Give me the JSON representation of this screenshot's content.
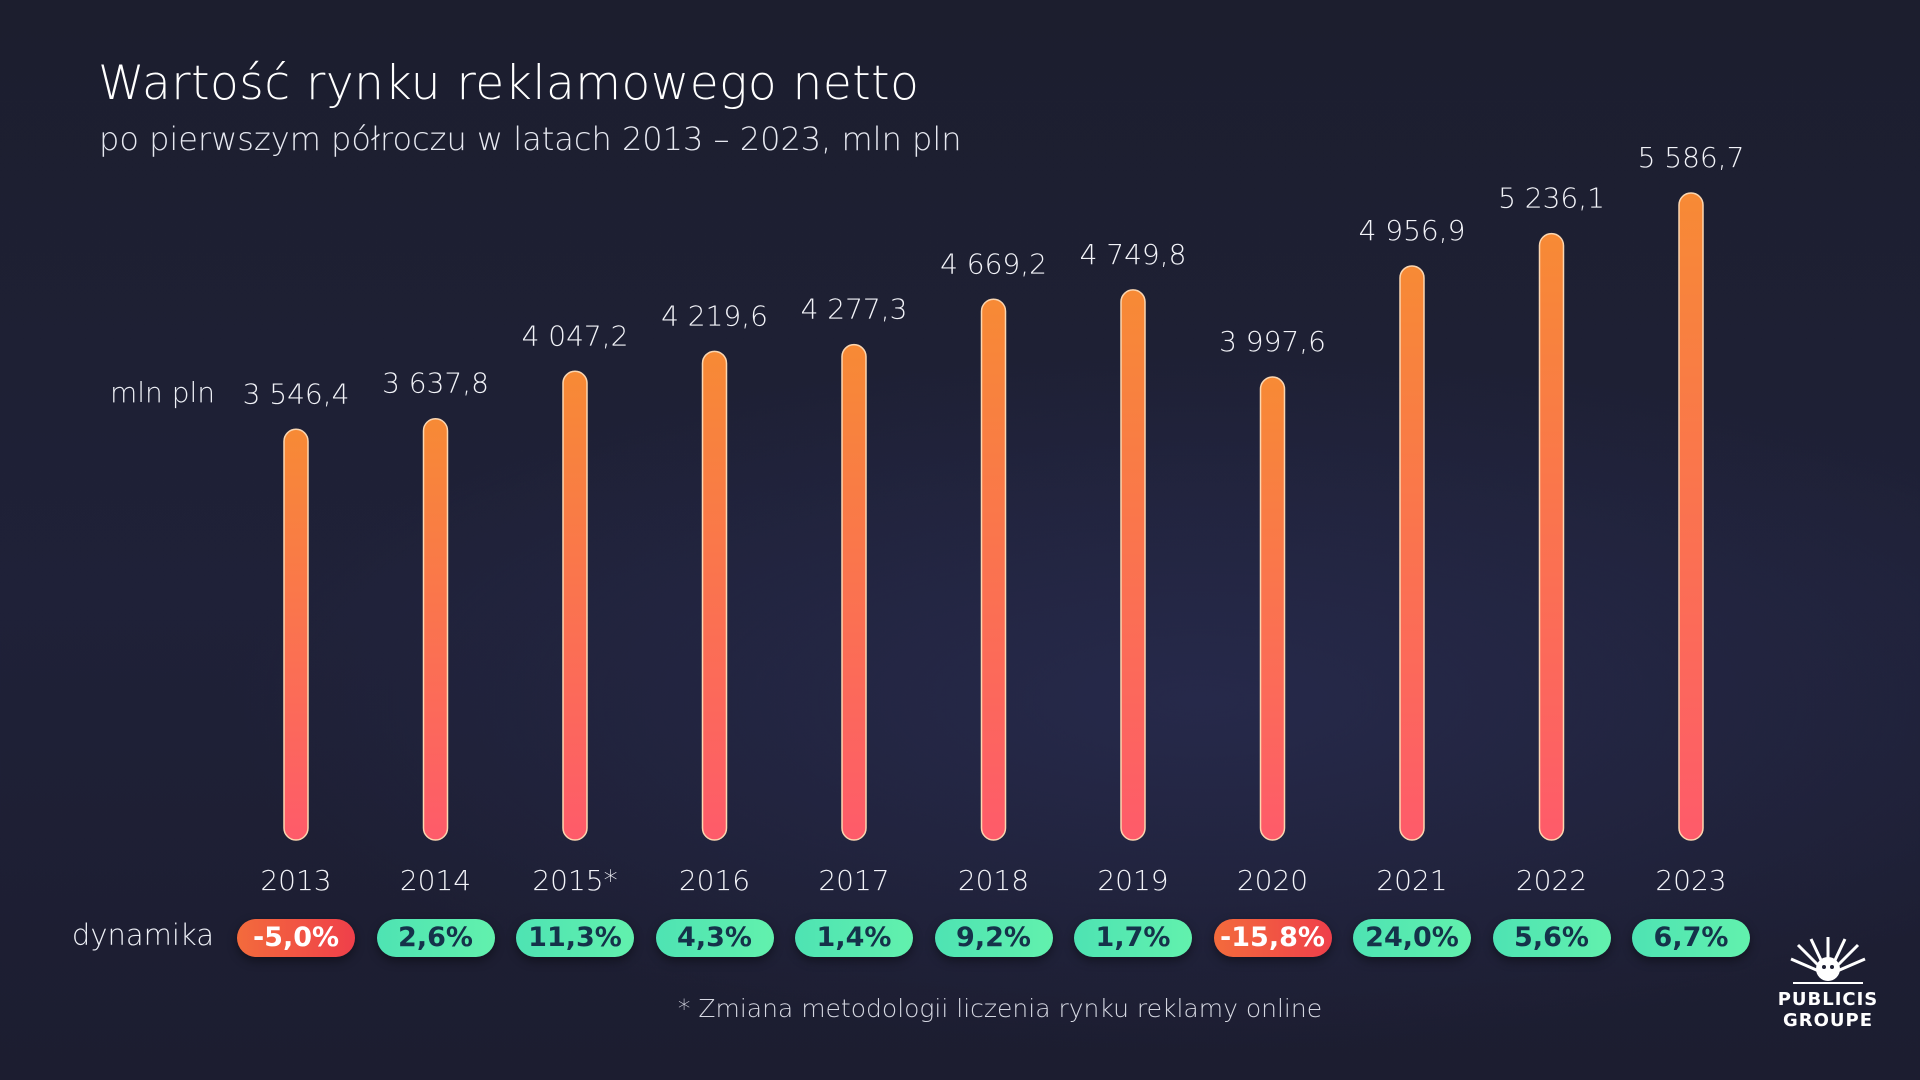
{
  "title": "Wartość rynku reklamowego netto",
  "subtitle": "po pierwszym półroczu w latach 2013 – 2023, mln pln",
  "unit_label": "mln pln",
  "dynamics_label": "dynamika",
  "footnote": "* Zmiana metodologii liczenia rynku reklamy online",
  "logo": {
    "line1": "PUBLICIS",
    "line2": "GROUPE"
  },
  "colors": {
    "bar_top": "#f78a35",
    "bar_bottom": "#fe5b6a",
    "positive": "#5be9b0",
    "negative": "#f0494a"
  },
  "chart_data": {
    "type": "bar",
    "title": "Wartość rynku reklamowego netto",
    "ylabel": "mln pln",
    "ylim": [
      0,
      5586.7
    ],
    "categories": [
      "2013",
      "2014",
      "2015*",
      "2016",
      "2017",
      "2018",
      "2019",
      "2020",
      "2021",
      "2022",
      "2023"
    ],
    "values": [
      3546.4,
      3637.8,
      4047.2,
      4219.6,
      4277.3,
      4669.2,
      4749.8,
      3997.6,
      4956.9,
      5236.1,
      5586.7
    ],
    "value_labels": [
      "3 546,4",
      "3 637,8",
      "4 047,2",
      "4 219,6",
      "4 277,3",
      "4 669,2",
      "4 749,8",
      "3 997,6",
      "4 956,9",
      "5 236,1",
      "5 586,7"
    ],
    "dynamics": [
      "-5,0%",
      "2,6%",
      "11,3%",
      "4,3%",
      "1,4%",
      "9,2%",
      "1,7%",
      "-15,8%",
      "24,0%",
      "5,6%",
      "6,7%"
    ],
    "dynamics_values": [
      -5.0,
      2.6,
      11.3,
      4.3,
      1.4,
      9.2,
      1.7,
      -15.8,
      24.0,
      5.6,
      6.7
    ]
  }
}
